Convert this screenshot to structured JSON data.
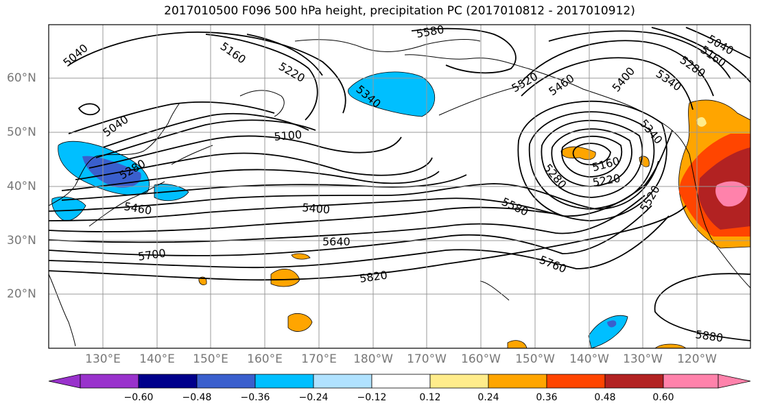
{
  "title": "2017010500 F096 500 hPa height, precipitation PC (2017010812 - 2017010912)",
  "lat_labels": [
    "60°N",
    "50°N",
    "40°N",
    "30°N",
    "20°N"
  ],
  "lon_labels": [
    "130°E",
    "140°E",
    "150°E",
    "160°E",
    "170°E",
    "180°W",
    "170°W",
    "160°W",
    "150°W",
    "140°W",
    "130°W",
    "120°W"
  ],
  "colorbar": {
    "ticks": [
      "−0.60",
      "−0.48",
      "−0.36",
      "−0.24",
      "−0.12",
      "0.12",
      "0.24",
      "0.36",
      "0.48",
      "0.60"
    ],
    "colors": [
      "#9932CC",
      "#00008B",
      "#3A5FCD",
      "#00BFFF",
      "#B0E2FF",
      "#FFFFFF",
      "#FFEC8B",
      "#FFA500",
      "#FF4500",
      "#B22222",
      "#FF82AB"
    ]
  },
  "contour_labels": [
    {
      "text": "5040"
    },
    {
      "text": "5160"
    },
    {
      "text": "5220"
    },
    {
      "text": "5580"
    },
    {
      "text": "5040"
    },
    {
      "text": "5100"
    },
    {
      "text": "5340"
    },
    {
      "text": "5280"
    },
    {
      "text": "5460"
    },
    {
      "text": "5400"
    },
    {
      "text": "5640"
    },
    {
      "text": "5700"
    },
    {
      "text": "5820"
    },
    {
      "text": "5580"
    },
    {
      "text": "5760"
    },
    {
      "text": "5280"
    },
    {
      "text": "5160"
    },
    {
      "text": "5220"
    },
    {
      "text": "5520"
    },
    {
      "text": "5460"
    },
    {
      "text": "5880"
    },
    {
      "text": "5340"
    },
    {
      "text": "5280"
    },
    {
      "text": "5160"
    },
    {
      "text": "5040"
    },
    {
      "text": "5520"
    },
    {
      "text": "5400"
    },
    {
      "text": "5340"
    }
  ]
}
